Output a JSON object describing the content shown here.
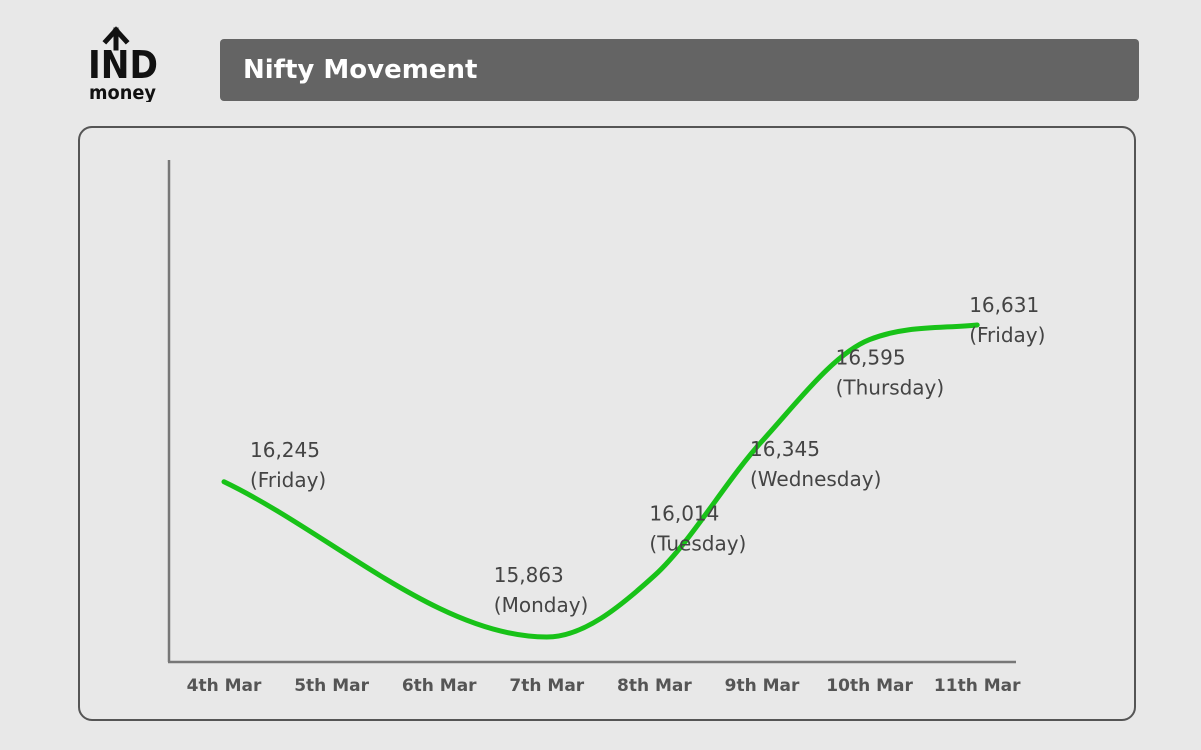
{
  "brand": {
    "line1": "IND",
    "line2": "money"
  },
  "title": "Nifty Movement",
  "colors": {
    "line": "#18c218",
    "axis": "#777777",
    "title_bg": "#646464",
    "label": "#444444"
  },
  "chart_data": {
    "type": "line",
    "title": "Nifty Movement",
    "xlabel": "",
    "ylabel": "",
    "grid": false,
    "categories": [
      "4th Mar",
      "5th Mar",
      "6th Mar",
      "7th Mar",
      "8th Mar",
      "9th Mar",
      "10th Mar",
      "11th Mar"
    ],
    "points": [
      {
        "x": "4th Mar",
        "y": 16245,
        "value_label": "16,245",
        "day_label": "(Friday)"
      },
      {
        "x": "7th Mar",
        "y": 15863,
        "value_label": "15,863",
        "day_label": "(Monday)"
      },
      {
        "x": "8th Mar",
        "y": 16014,
        "value_label": "16,014",
        "day_label": "(Tuesday)"
      },
      {
        "x": "9th Mar",
        "y": 16345,
        "value_label": "16,345",
        "day_label": "(Wednesday)"
      },
      {
        "x": "10th Mar",
        "y": 16595,
        "value_label": "16,595",
        "day_label": "(Thursday)"
      },
      {
        "x": "11th Mar",
        "y": 16631,
        "value_label": "16,631",
        "day_label": "(Friday)"
      }
    ]
  }
}
